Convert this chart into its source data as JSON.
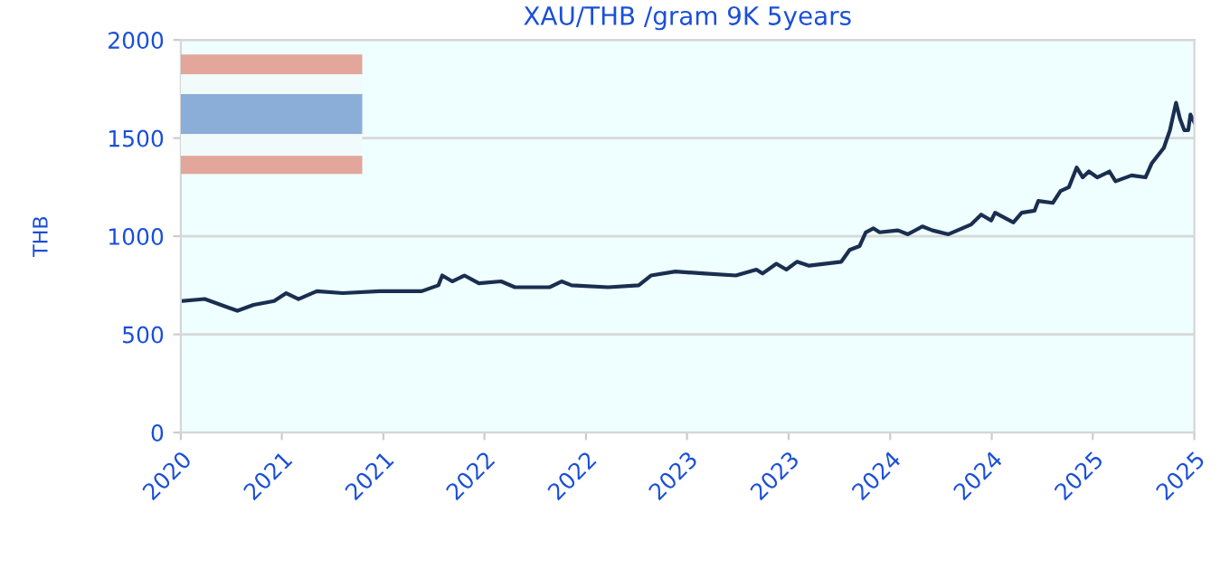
{
  "chart_data": {
    "type": "line",
    "title": "XAU/THB /gram 9K 5years",
    "ylabel": "THB",
    "x": [
      "2020-10-19",
      "2020-12-01",
      "2021-01-29",
      "2021-02-27",
      "2021-04-05",
      "2021-04-27",
      "2021-05-19",
      "2021-06-21",
      "2021-08-07",
      "2021-10-12",
      "2021-12-27",
      "2022-01-26",
      "2022-02-02",
      "2022-02-20",
      "2022-03-14",
      "2022-04-09",
      "2022-05-19",
      "2022-06-13",
      "2022-08-14",
      "2022-09-05",
      "2022-09-23",
      "2022-11-28",
      "2023-01-22",
      "2023-02-13",
      "2023-03-29",
      "2023-05-22",
      "2023-07-16",
      "2023-08-22",
      "2023-09-02",
      "2023-09-27",
      "2023-10-15",
      "2023-11-03",
      "2023-11-25",
      "2024-01-22",
      "2024-02-06",
      "2024-02-24",
      "2024-03-06",
      "2024-03-20",
      "2024-03-31",
      "2024-05-03",
      "2024-05-21",
      "2024-06-16",
      "2024-07-04",
      "2024-08-02",
      "2024-09-12",
      "2024-09-30",
      "2024-10-18",
      "2024-10-25",
      "2024-11-27",
      "2024-12-12",
      "2025-01-04",
      "2025-01-11",
      "2025-02-06",
      "2025-02-20",
      "2025-03-07",
      "2025-03-21",
      "2025-04-01",
      "2025-04-12",
      "2025-04-27",
      "2025-05-19",
      "2025-05-30",
      "2025-06-28",
      "2025-07-23",
      "2025-08-03",
      "2025-08-25",
      "2025-09-05",
      "2025-09-16",
      "2025-09-23",
      "2025-10-01",
      "2025-10-08",
      "2025-10-12",
      "2025-10-19"
    ],
    "series": [
      {
        "color": "#1a2e50",
        "values": [
          670,
          680,
          620,
          650,
          670,
          710,
          680,
          720,
          710,
          720,
          720,
          750,
          800,
          770,
          800,
          760,
          770,
          740,
          740,
          770,
          750,
          740,
          750,
          800,
          820,
          810,
          800,
          830,
          810,
          860,
          830,
          870,
          850,
          870,
          930,
          950,
          1020,
          1040,
          1020,
          1030,
          1010,
          1050,
          1030,
          1010,
          1060,
          1110,
          1080,
          1120,
          1070,
          1120,
          1130,
          1180,
          1170,
          1230,
          1250,
          1350,
          1300,
          1330,
          1300,
          1330,
          1280,
          1310,
          1300,
          1370,
          1450,
          1540,
          1680,
          1600,
          1540,
          1540,
          1620,
          1580
        ]
      }
    ],
    "xlim": [
      "2020-10-19",
      "2025-10-19"
    ],
    "xticks": [
      {
        "value": "2020-10-19",
        "label": "2020"
      },
      {
        "value": "2021-04-19",
        "label": "2021"
      },
      {
        "value": "2021-10-19",
        "label": "2021"
      },
      {
        "value": "2022-04-19",
        "label": "2022"
      },
      {
        "value": "2022-10-19",
        "label": "2022"
      },
      {
        "value": "2023-04-19",
        "label": "2023"
      },
      {
        "value": "2023-10-19",
        "label": "2023"
      },
      {
        "value": "2024-04-19",
        "label": "2024"
      },
      {
        "value": "2024-10-19",
        "label": "2024"
      },
      {
        "value": "2025-04-19",
        "label": "2025"
      },
      {
        "value": "2025-10-19",
        "label": "2025"
      }
    ],
    "ylim": [
      0,
      2000
    ],
    "yticks": [
      0,
      500,
      1000,
      1500,
      2000
    ],
    "grid": "y",
    "legend": false,
    "marker": "none",
    "line_style": "solid"
  }
}
